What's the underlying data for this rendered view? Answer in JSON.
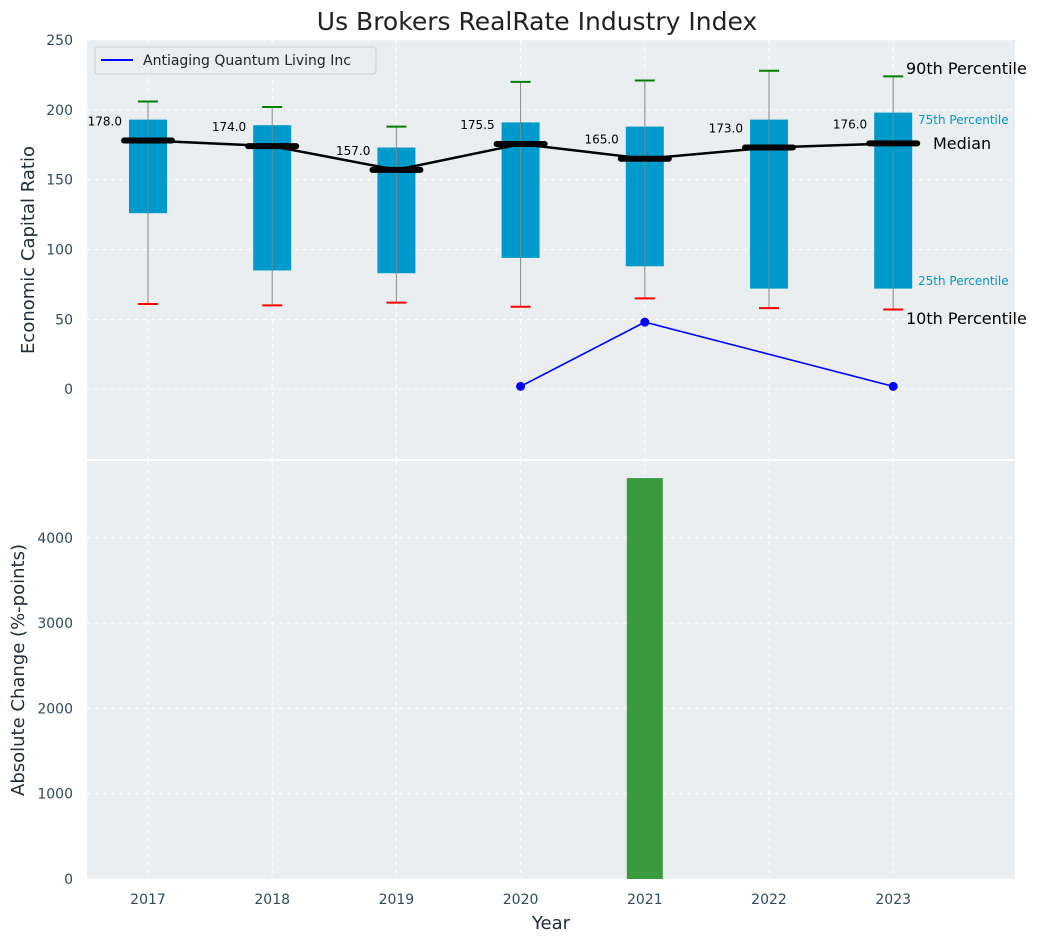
{
  "chart_data": [
    {
      "type": "box",
      "title": "Us Brokers RealRate Industry Index",
      "ylabel": "Economic Capital Ratio",
      "ylim": [
        -50,
        250
      ],
      "yticks": [
        0,
        50,
        100,
        150,
        200,
        250
      ],
      "categories": [
        "2017",
        "2018",
        "2019",
        "2020",
        "2021",
        "2022",
        "2023"
      ],
      "p10": [
        61,
        60,
        62,
        59,
        65,
        58,
        57
      ],
      "p25": [
        126,
        85,
        83,
        94,
        88,
        72,
        72
      ],
      "median": [
        178.0,
        174.0,
        157.0,
        175.5,
        165.0,
        173.0,
        176.0
      ],
      "p75": [
        193,
        189,
        173,
        191,
        188,
        193,
        198
      ],
      "p90": [
        206,
        202,
        188,
        220,
        221,
        228,
        224
      ],
      "median_labels": [
        "178.0",
        "174.0",
        "157.0",
        "175.5",
        "165.0",
        "173.0",
        "176.0"
      ],
      "company": {
        "name": "Antiaging Quantum Living Inc",
        "years": [
          "2020",
          "2021",
          "2023"
        ],
        "values": [
          2,
          48,
          2
        ]
      },
      "annotations": {
        "p90": "90th Percentile",
        "p75": "75th Percentile",
        "median": "Median",
        "p25": "25th Percentile",
        "p10": "10th Percentile"
      },
      "colors": {
        "box": "#0099cc",
        "median_line": "#000000",
        "company": "#0000ff",
        "p90_cap": "#008000",
        "p10_cap": "#ff0000",
        "whisker": "#888888"
      }
    },
    {
      "type": "bar",
      "ylabel": "Absolute Change (%-points)",
      "xlabel": "Year",
      "ylim": [
        0,
        4900
      ],
      "yticks": [
        0,
        1000,
        2000,
        3000,
        4000
      ],
      "categories": [
        "2017",
        "2018",
        "2019",
        "2020",
        "2021",
        "2022",
        "2023"
      ],
      "values": [
        0,
        0,
        0,
        0,
        4700,
        0,
        0
      ],
      "color": "#3a9b3e"
    }
  ]
}
